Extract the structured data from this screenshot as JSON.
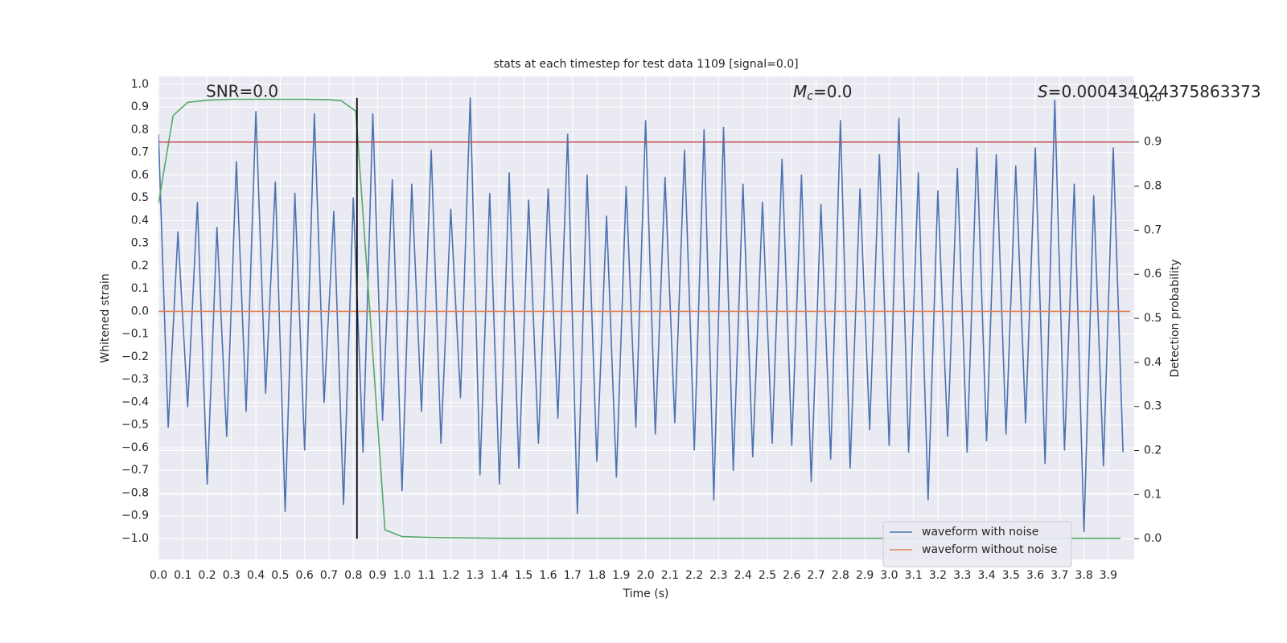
{
  "chart_data": {
    "type": "line",
    "title": "stats at each timestep for test data 1109 [signal=0.0]",
    "xlabel": "Time (s)",
    "ylabel": "Whitened strain",
    "y2label": "Detection probability",
    "annotations": {
      "snr": "SNR=0.0",
      "mc": {
        "symbol": "M",
        "subscript": "c",
        "text": "=0.0"
      },
      "s": {
        "symbol": "S",
        "text": "=0.000434024375863373"
      }
    },
    "background": "#eaeaf2",
    "grid": true,
    "legend": "lower right",
    "xlim": [
      0,
      4.006
    ],
    "ylim": [
      -1.092,
      1.035
    ],
    "y2lim": [
      -0.047,
      1.049
    ],
    "xticks": [
      {
        "value": 0,
        "label": "0.0"
      },
      0.1,
      0.2,
      0.3,
      0.4,
      0.5,
      0.6,
      0.7,
      0.8,
      0.9,
      {
        "value": 1,
        "label": "1.0"
      },
      1.1,
      1.2,
      1.3,
      1.4,
      1.5,
      1.6,
      1.7,
      1.8,
      1.9,
      {
        "value": 2,
        "label": "2.0"
      },
      2.1,
      2.2,
      2.3,
      2.4,
      2.5,
      2.6,
      2.7,
      2.8,
      2.9,
      {
        "value": 3,
        "label": "3.0"
      },
      3.1,
      3.2,
      3.3,
      3.4,
      3.5,
      3.6,
      3.7,
      3.8,
      3.9
    ],
    "yticks": [
      {
        "value": -1,
        "label": "−1.0"
      },
      {
        "value": -0.9,
        "label": "−0.9"
      },
      {
        "value": -0.8,
        "label": "−0.8"
      },
      {
        "value": -0.7,
        "label": "−0.7"
      },
      {
        "value": -0.6,
        "label": "−0.6"
      },
      {
        "value": -0.5,
        "label": "−0.5"
      },
      {
        "value": -0.4,
        "label": "−0.4"
      },
      {
        "value": -0.3,
        "label": "−0.3"
      },
      {
        "value": -0.2,
        "label": "−0.2"
      },
      {
        "value": -0.1,
        "label": "−0.1"
      },
      {
        "value": 0,
        "label": "0.0"
      },
      0.1,
      0.2,
      0.3,
      0.4,
      0.5,
      0.6,
      0.7,
      0.8,
      0.9,
      {
        "value": 1,
        "label": "1.0"
      }
    ],
    "y2ticks": [
      {
        "value": 0,
        "label": "0.0"
      },
      0.1,
      0.2,
      0.3,
      0.4,
      0.5,
      0.6,
      0.7,
      0.8,
      0.9,
      {
        "value": 1,
        "label": "1.0"
      }
    ],
    "series": [
      {
        "name": "waveform with noise",
        "color": "#4c72b0",
        "x": [
          0,
          0.04,
          0.08,
          0.12,
          0.16,
          0.2,
          0.24,
          0.28,
          0.32,
          0.36,
          0.4,
          0.44,
          0.48,
          0.52,
          0.56,
          0.6,
          0.64,
          0.68,
          0.72,
          0.76,
          0.8,
          0.84,
          0.88,
          0.92,
          0.96,
          1,
          1.04,
          1.08,
          1.12,
          1.16,
          1.2,
          1.24,
          1.28,
          1.32,
          1.36,
          1.4,
          1.44,
          1.48,
          1.52,
          1.56,
          1.6,
          1.64,
          1.68,
          1.72,
          1.76,
          1.8,
          1.84,
          1.88,
          1.92,
          1.96,
          2,
          2.04,
          2.08,
          2.12,
          2.16,
          2.2,
          2.24,
          2.28,
          2.32,
          2.36,
          2.4,
          2.44,
          2.48,
          2.52,
          2.56,
          2.6,
          2.64,
          2.68,
          2.72,
          2.76,
          2.8,
          2.84,
          2.88,
          2.92,
          2.96,
          3,
          3.04,
          3.08,
          3.12,
          3.16,
          3.2,
          3.24,
          3.28,
          3.32,
          3.36,
          3.4,
          3.44,
          3.48,
          3.52,
          3.56,
          3.6,
          3.64,
          3.68,
          3.72,
          3.76,
          3.8,
          3.84,
          3.88,
          3.92,
          3.96
        ],
        "values": [
          0.78,
          -0.51,
          0.35,
          -0.42,
          0.48,
          -0.76,
          0.37,
          -0.55,
          0.66,
          -0.44,
          0.88,
          -0.36,
          0.57,
          -0.88,
          0.52,
          -0.61,
          0.87,
          -0.4,
          0.44,
          -0.85,
          0.5,
          -0.62,
          0.87,
          -0.48,
          0.58,
          -0.79,
          0.56,
          -0.44,
          0.71,
          -0.58,
          0.45,
          -0.38,
          0.94,
          -0.72,
          0.52,
          -0.76,
          0.61,
          -0.69,
          0.49,
          -0.58,
          0.54,
          -0.47,
          0.78,
          -0.89,
          0.6,
          -0.66,
          0.42,
          -0.73,
          0.55,
          -0.51,
          0.84,
          -0.54,
          0.59,
          -0.49,
          0.71,
          -0.61,
          0.8,
          -0.83,
          0.81,
          -0.7,
          0.56,
          -0.64,
          0.48,
          -0.58,
          0.67,
          -0.59,
          0.6,
          -0.75,
          0.47,
          -0.65,
          0.84,
          -0.69,
          0.54,
          -0.52,
          0.69,
          -0.59,
          0.85,
          -0.62,
          0.61,
          -0.83,
          0.53,
          -0.55,
          0.63,
          -0.62,
          0.72,
          -0.57,
          0.69,
          -0.54,
          0.64,
          -0.49,
          0.72,
          -0.67,
          0.93,
          -0.61,
          0.56,
          -0.97,
          0.51,
          -0.68,
          0.72,
          -0.62
        ]
      },
      {
        "name": "waveform without noise",
        "color": "#dd8452",
        "x": [
          0,
          3.99
        ],
        "values": [
          0,
          0
        ]
      },
      {
        "color": "#55a868",
        "axis": "y2",
        "in_legend": false,
        "x": [
          0,
          0.06,
          0.12,
          0.2,
          0.3,
          0.4,
          0.5,
          0.6,
          0.7,
          0.75,
          0.81,
          0.87,
          0.93,
          1,
          1.1,
          1.2,
          1.4,
          1.8,
          2.4,
          3,
          3.6,
          3.95
        ],
        "values": [
          0.76,
          0.96,
          0.99,
          0.995,
          0.997,
          0.997,
          0.997,
          0.997,
          0.996,
          0.994,
          0.97,
          0.5,
          0.02,
          0.005,
          0.003,
          0.002,
          0.001,
          0.001,
          0.001,
          0.001,
          0.001,
          0.001
        ]
      }
    ],
    "hlines": [
      {
        "value": 0.9,
        "axis": "y2",
        "color": "#c44e52"
      }
    ],
    "vlines": [
      {
        "value": 0.815,
        "color": "#000000",
        "from": 0,
        "to": 1,
        "axis": "y2"
      }
    ]
  }
}
